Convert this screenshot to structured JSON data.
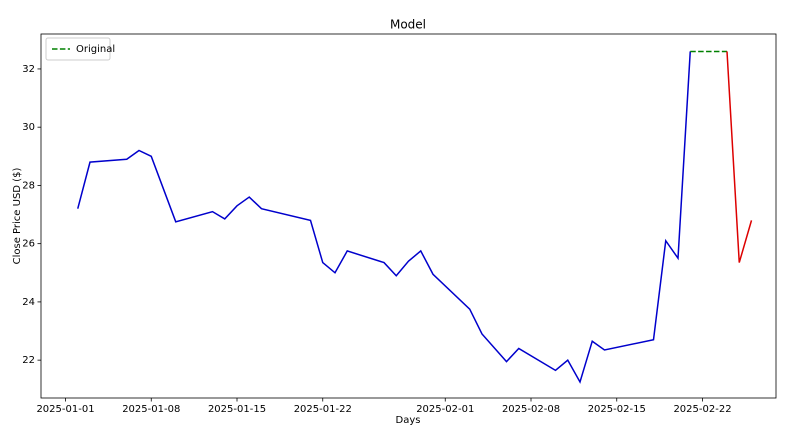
{
  "chart_data": {
    "type": "line",
    "title": "Model",
    "x_label": "Days",
    "y_label": "Close Price USD ($)",
    "x": [
      "2025-01-02",
      "2025-01-03",
      "2025-01-06",
      "2025-01-07",
      "2025-01-08",
      "2025-01-10",
      "2025-01-13",
      "2025-01-14",
      "2025-01-15",
      "2025-01-16",
      "2025-01-17",
      "2025-01-21",
      "2025-01-22",
      "2025-01-23",
      "2025-01-24",
      "2025-01-27",
      "2025-01-28",
      "2025-01-29",
      "2025-01-30",
      "2025-01-31",
      "2025-02-03",
      "2025-02-04",
      "2025-02-06",
      "2025-02-07",
      "2025-02-10",
      "2025-02-11",
      "2025-02-12",
      "2025-02-13",
      "2025-02-14",
      "2025-02-18",
      "2025-02-19",
      "2025-02-20",
      "2025-02-21",
      "2025-02-24",
      "2025-02-25",
      "2025-02-26"
    ],
    "series": [
      {
        "color": "#0000cc",
        "linestyle": "solid",
        "values": [
          27.2,
          28.8,
          28.9,
          29.2,
          29.0,
          26.75,
          27.1,
          26.85,
          27.3,
          27.6,
          27.2,
          26.8,
          25.35,
          25.0,
          25.75,
          25.35,
          24.9,
          25.4,
          25.75,
          24.95,
          23.75,
          22.9,
          21.95,
          22.4,
          21.65,
          22.0,
          21.25,
          22.65,
          22.35,
          22.7,
          26.1,
          25.5,
          32.6,
          null,
          null,
          null
        ]
      },
      {
        "name": "Original",
        "color": "#008000",
        "linestyle": "dashed",
        "values": [
          null,
          null,
          null,
          null,
          null,
          null,
          null,
          null,
          null,
          null,
          null,
          null,
          null,
          null,
          null,
          null,
          null,
          null,
          null,
          null,
          null,
          null,
          null,
          null,
          null,
          null,
          null,
          null,
          null,
          null,
          null,
          null,
          32.6,
          32.6,
          null,
          null
        ]
      },
      {
        "color": "#dd0000",
        "linestyle": "solid",
        "values": [
          null,
          null,
          null,
          null,
          null,
          null,
          null,
          null,
          null,
          null,
          null,
          null,
          null,
          null,
          null,
          null,
          null,
          null,
          null,
          null,
          null,
          null,
          null,
          null,
          null,
          null,
          null,
          null,
          null,
          null,
          null,
          null,
          null,
          32.6,
          25.35,
          26.8
        ]
      }
    ],
    "xlim": [
      "2024-12-30",
      "2025-02-28"
    ],
    "xticks": [
      "2025-01-01",
      "2025-01-08",
      "2025-01-15",
      "2025-01-22",
      "2025-02-01",
      "2025-02-08",
      "2025-02-15",
      "2025-02-22"
    ],
    "ylim": [
      20.7,
      33.2
    ],
    "yticks": [
      22,
      24,
      26,
      28,
      30,
      32
    ],
    "legend": "upper left",
    "grid": false
  }
}
